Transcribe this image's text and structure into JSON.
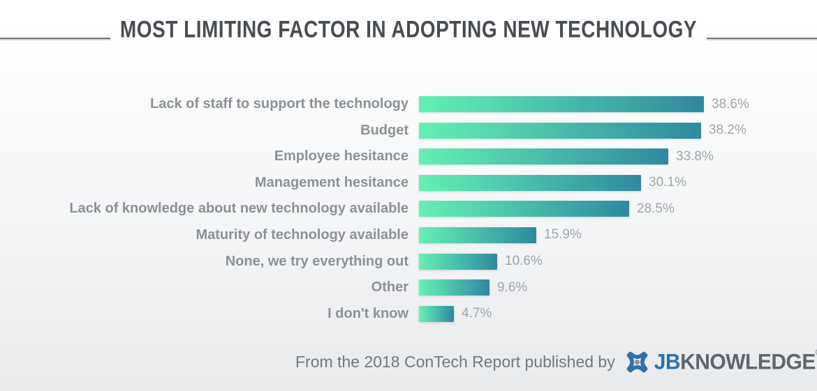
{
  "title": "MOST LIMITING FACTOR IN ADOPTING NEW TECHNOLOGY",
  "footer": {
    "caption": "From the 2018 ConTech Report published by",
    "logo": {
      "jb": "JB",
      "knowledge": "KNOWLEDGE",
      "reg": "®"
    }
  },
  "colors": {
    "title": "#484d54",
    "rule": "#70757c",
    "label": "#8d9196",
    "value": "#a0a5aa",
    "caption": "#6f7982",
    "bar_start": "#64f1b4",
    "bar_end": "#2f89a0",
    "logo_blue": "#2d71ad",
    "logo_gray": "#5d6770",
    "logo_dot": "#8b9196"
  },
  "chart_data": {
    "type": "bar",
    "orientation": "horizontal",
    "title": "MOST LIMITING FACTOR IN ADOPTING NEW TECHNOLOGY",
    "categories": [
      "Lack of staff to support the technology",
      "Budget",
      "Employee hesitance",
      "Management hesitance",
      "Lack of knowledge about new technology available",
      "Maturity of technology available",
      "None, we try everything out",
      "Other",
      "I don't know"
    ],
    "values": [
      38.6,
      38.2,
      33.8,
      30.1,
      28.5,
      15.9,
      10.6,
      9.6,
      4.7
    ],
    "value_labels": [
      "38.6%",
      "38.2%",
      "33.8%",
      "30.1%",
      "28.5%",
      "15.9%",
      "10.6%",
      "9.6%",
      "4.7%"
    ],
    "xlim": [
      0,
      40
    ],
    "grid": false,
    "legend": false,
    "bar_gradient": [
      "#64f1b4",
      "#2f89a0"
    ],
    "source": "From the 2018 ConTech Report published by JBKNOWLEDGE"
  }
}
